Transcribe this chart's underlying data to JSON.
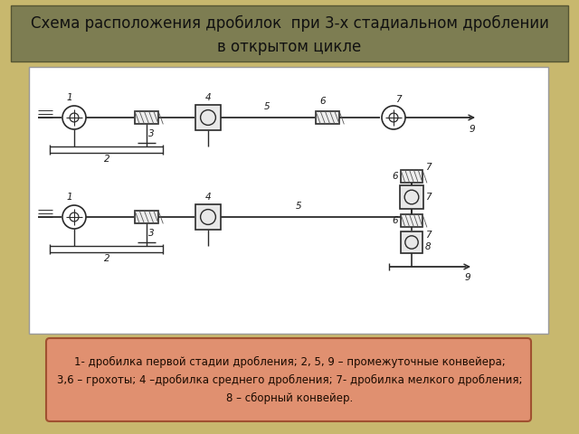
{
  "title_line1": "Схема расположения дробилок  при 3-х стадиальном дроблении",
  "title_line2": "в открытом цикле",
  "title_bg": "#7d7d52",
  "title_fg": "#111111",
  "outer_bg": "#c8b86e",
  "diagram_bg": "#ffffff",
  "legend_bg": "#e09070",
  "legend_border": "#a05030",
  "legend_text_line1": "1- дробилка первой стадии дробления; 2, 5, 9 – промежуточные конвейера;",
  "legend_text_line2": "3,6 – грохоты; 4 –дробилка среднего дробления; 7- дробилка мелкого дробления;",
  "legend_text_line3": "8 – сборный конвейер.",
  "legend_fontsize": 8.5,
  "title_fontsize": 12
}
